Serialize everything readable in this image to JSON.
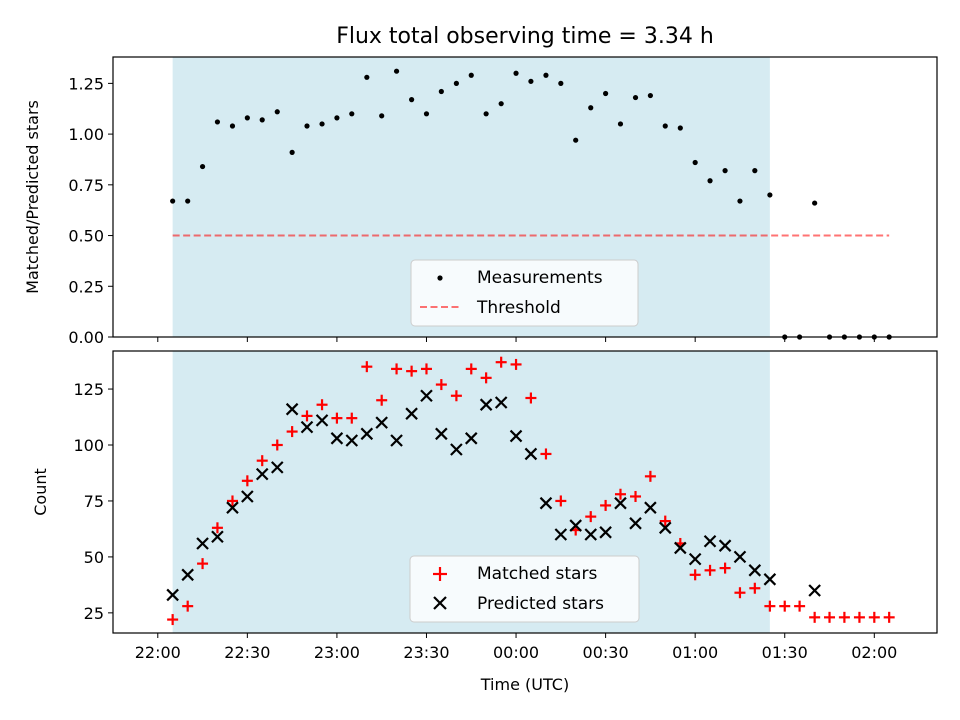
{
  "chart_data": [
    {
      "type": "scatter",
      "title": "Flux total observing time = 3.34 h",
      "xlabel": "",
      "ylabel": "Matched/Predicted stars",
      "ylim": [
        0,
        1.38
      ],
      "yticks": [
        "0.00",
        "0.25",
        "0.50",
        "0.75",
        "1.00",
        "1.25"
      ],
      "threshold": 0.5,
      "shaded_interval_hours": [
        22.083,
        25.417
      ],
      "legend": {
        "placement": "lower-center",
        "entries": [
          "Measurements",
          "Threshold"
        ]
      },
      "x_hours": [
        22.083,
        22.167,
        22.25,
        22.333,
        22.417,
        22.5,
        22.583,
        22.667,
        22.75,
        22.833,
        22.917,
        23.0,
        23.083,
        23.167,
        23.25,
        23.333,
        23.417,
        23.5,
        23.583,
        23.667,
        23.75,
        23.833,
        23.917,
        24.0,
        24.083,
        24.167,
        24.25,
        24.333,
        24.417,
        24.5,
        24.583,
        24.667,
        24.75,
        24.833,
        24.917,
        25.0,
        25.083,
        25.167,
        25.25,
        25.333,
        25.417,
        25.5,
        25.583,
        25.667,
        25.75,
        25.833,
        25.917,
        26.0,
        26.083
      ],
      "series": [
        {
          "name": "Measurements",
          "values": [
            0.67,
            0.67,
            0.84,
            1.06,
            1.04,
            1.08,
            1.07,
            1.11,
            0.91,
            1.04,
            1.05,
            1.08,
            1.1,
            1.28,
            1.09,
            1.31,
            1.17,
            1.1,
            1.21,
            1.25,
            1.29,
            1.1,
            1.15,
            1.3,
            1.26,
            1.29,
            1.25,
            0.97,
            1.13,
            1.2,
            1.05,
            1.18,
            1.19,
            1.04,
            1.03,
            0.86,
            0.77,
            0.82,
            0.67,
            0.82,
            0.7,
            0.0,
            0.0,
            0.66,
            0.0,
            0.0,
            0.0,
            0.0,
            0.0
          ]
        }
      ]
    },
    {
      "type": "scatter",
      "title": "",
      "xlabel": "Time (UTC)",
      "ylabel": "Count",
      "ylim": [
        16,
        142
      ],
      "yticks": [
        "25",
        "50",
        "75",
        "100",
        "125"
      ],
      "xlim_hours": [
        21.75,
        26.35
      ],
      "xticks": [
        "22:00",
        "22:30",
        "23:00",
        "23:30",
        "00:00",
        "00:30",
        "01:00",
        "01:30",
        "02:00"
      ],
      "legend": {
        "placement": "lower-center",
        "entries": [
          "Matched stars",
          "Predicted stars"
        ]
      },
      "x_hours": [
        22.083,
        22.167,
        22.25,
        22.333,
        22.417,
        22.5,
        22.583,
        22.667,
        22.75,
        22.833,
        22.917,
        23.0,
        23.083,
        23.167,
        23.25,
        23.333,
        23.417,
        23.5,
        23.583,
        23.667,
        23.75,
        23.833,
        23.917,
        24.0,
        24.083,
        24.167,
        24.25,
        24.333,
        24.417,
        24.5,
        24.583,
        24.667,
        24.75,
        24.833,
        24.917,
        25.0,
        25.083,
        25.167,
        25.25,
        25.333,
        25.417,
        25.5,
        25.583,
        25.667,
        25.75,
        25.833,
        25.917,
        26.0,
        26.083
      ],
      "series": [
        {
          "name": "Matched stars",
          "values": [
            22,
            28,
            47,
            63,
            75,
            84,
            93,
            100,
            106,
            113,
            118,
            112,
            112,
            135,
            120,
            134,
            133,
            134,
            127,
            122,
            134,
            130,
            137,
            136,
            121,
            96,
            75,
            62,
            68,
            73,
            78,
            77,
            86,
            66,
            56,
            42,
            44,
            45,
            34,
            36,
            28,
            28,
            28,
            23,
            23,
            23,
            23,
            23,
            23
          ]
        },
        {
          "name": "Predicted stars",
          "values": [
            33,
            42,
            56,
            59,
            72,
            77,
            87,
            90,
            116,
            108,
            111,
            103,
            102,
            105,
            110,
            102,
            114,
            122,
            105,
            98,
            103,
            118,
            119,
            104,
            96,
            74,
            60,
            64,
            60,
            61,
            74,
            65,
            72,
            63,
            54,
            49,
            57,
            55,
            50,
            44,
            40,
            null,
            null,
            35,
            null,
            null,
            null,
            null,
            null
          ]
        }
      ]
    }
  ]
}
